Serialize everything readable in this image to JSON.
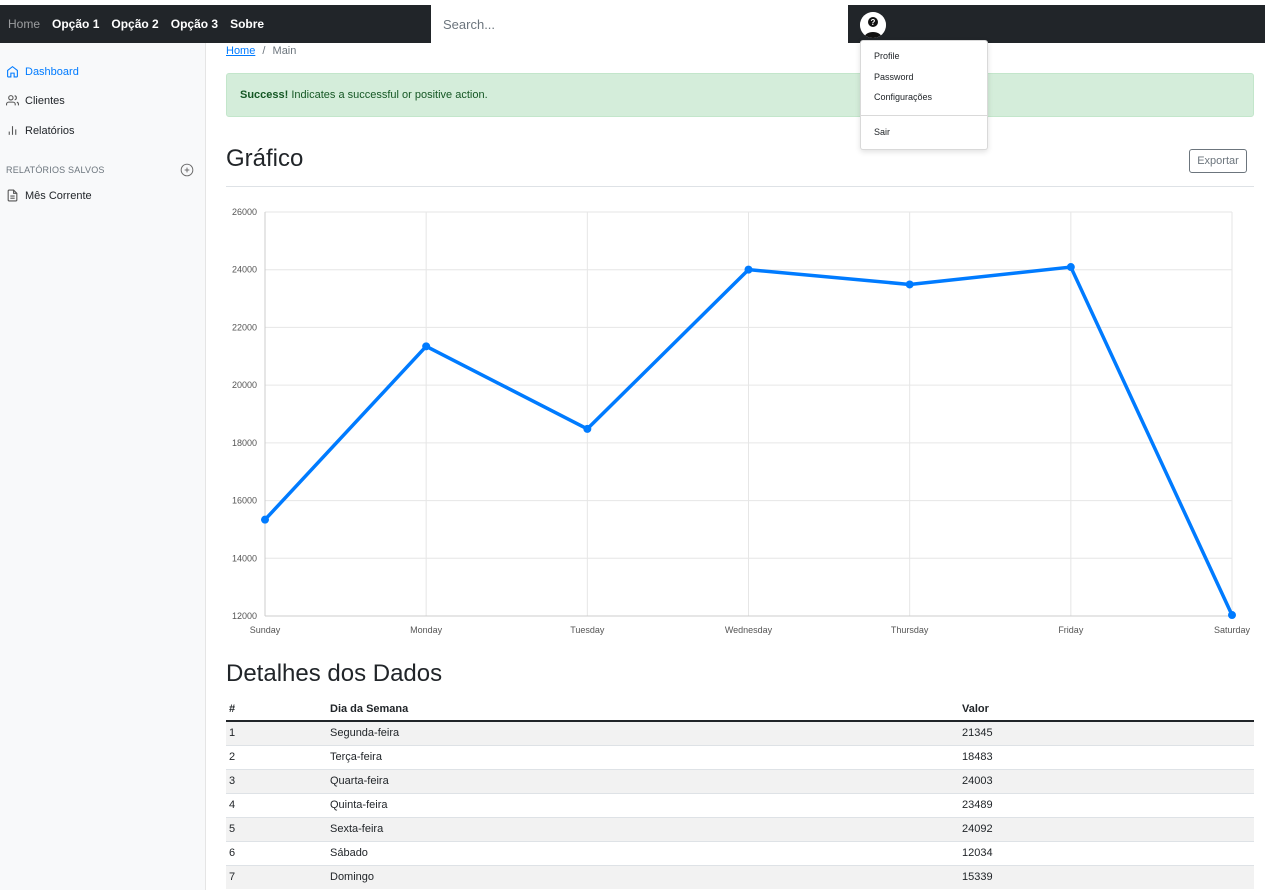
{
  "nav": {
    "home": "Home",
    "items": [
      "Opção 1",
      "Opção 2",
      "Opção 3",
      "Sobre"
    ],
    "search_placeholder": "Search..."
  },
  "user_menu": {
    "items": [
      "Profile",
      "Password",
      "Configurações",
      "Sair"
    ]
  },
  "sidebar": {
    "items": [
      {
        "label": "Dashboard",
        "icon": "home-icon"
      },
      {
        "label": "Clientes",
        "icon": "users-icon"
      },
      {
        "label": "Relatórios",
        "icon": "bar-chart-icon"
      }
    ],
    "saved_heading": "RELATÓRIOS SALVOS",
    "saved_items": [
      {
        "label": "Mês Corrente",
        "icon": "file-text-icon"
      }
    ]
  },
  "breadcrumb": {
    "home": "Home",
    "separator": "/",
    "current": "Main"
  },
  "alert": {
    "strong": "Success!",
    "text": " Indicates a successful or positive action."
  },
  "chart_section": {
    "title": "Gráfico",
    "export_label": "Exportar"
  },
  "chart_data": {
    "type": "line",
    "categories": [
      "Sunday",
      "Monday",
      "Tuesday",
      "Wednesday",
      "Thursday",
      "Friday",
      "Saturday"
    ],
    "values": [
      15339,
      21345,
      18483,
      24003,
      23489,
      24092,
      12034
    ],
    "y_ticks": [
      "12000",
      "14000",
      "16000",
      "18000",
      "20000",
      "22000",
      "24000",
      "26000"
    ],
    "ylim": [
      12000,
      26000
    ],
    "color": "#007bff",
    "grid": true
  },
  "table_section": {
    "title": "Detalhes dos Dados",
    "headers": [
      "#",
      "Dia da Semana",
      "Valor"
    ],
    "rows": [
      [
        "1",
        "Segunda-feira",
        "21345"
      ],
      [
        "2",
        "Terça-feira",
        "18483"
      ],
      [
        "3",
        "Quarta-feira",
        "24003"
      ],
      [
        "4",
        "Quinta-feira",
        "23489"
      ],
      [
        "5",
        "Sexta-feira",
        "24092"
      ],
      [
        "6",
        "Sábado",
        "12034"
      ],
      [
        "7",
        "Domingo",
        "15339"
      ]
    ]
  }
}
